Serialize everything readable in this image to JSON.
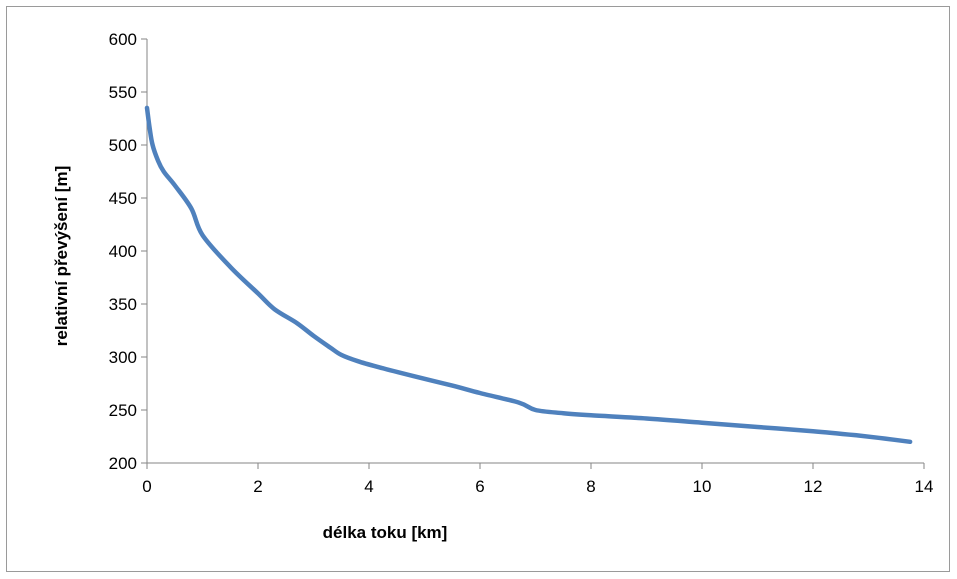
{
  "chart_data": {
    "type": "line",
    "title": "",
    "xlabel": "délka toku [km]",
    "ylabel": "relativní převýšení [m]",
    "xlim": [
      0,
      14
    ],
    "ylim": [
      200,
      600
    ],
    "xticks": [
      0,
      2,
      4,
      6,
      8,
      10,
      12,
      14
    ],
    "yticks": [
      200,
      250,
      300,
      350,
      400,
      450,
      500,
      550,
      600
    ],
    "grid": false,
    "legend": "none",
    "series": [
      {
        "color": "#4f81bd",
        "x": [
          0,
          0.05,
          0.1,
          0.2,
          0.3,
          0.5,
          0.8,
          1.0,
          1.5,
          2.0,
          2.3,
          2.7,
          3.0,
          3.3,
          3.5,
          3.8,
          4.2,
          4.8,
          5.5,
          6.0,
          6.7,
          7.0,
          7.5,
          8.0,
          9.0,
          10.0,
          11.0,
          12.0,
          12.8,
          13.3,
          13.75
        ],
        "y": [
          535,
          515,
          500,
          485,
          475,
          462,
          440,
          415,
          385,
          360,
          345,
          332,
          320,
          309,
          302,
          296,
          290,
          282,
          273,
          266,
          257,
          250,
          247,
          245,
          242,
          238,
          234,
          230,
          226,
          223,
          220
        ]
      }
    ]
  }
}
